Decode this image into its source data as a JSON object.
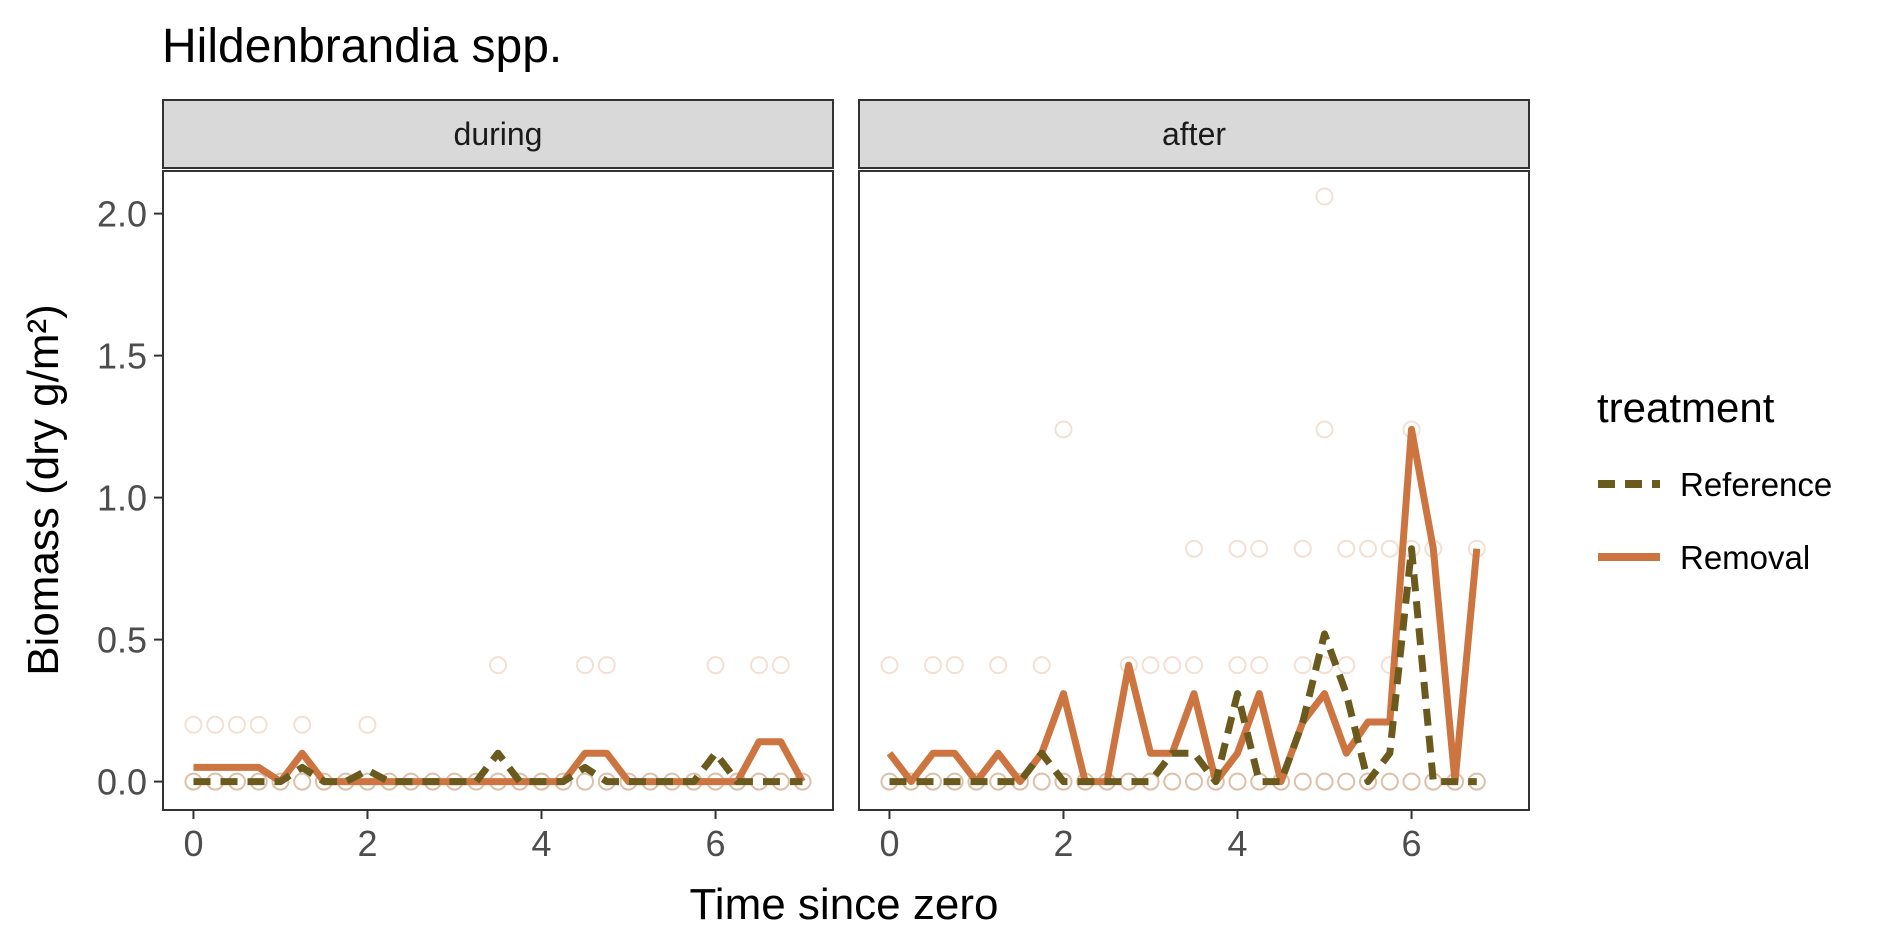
{
  "chart_data": {
    "type": "line",
    "title": "Hildenbrandia spp.",
    "xlabel": "Time since zero",
    "ylabel": "Biomass (dry g/m²)",
    "ylim": [
      -0.1,
      2.15
    ],
    "yticks": [
      0.0,
      0.5,
      1.0,
      1.5,
      2.0
    ],
    "ytick_labels": [
      "0.0",
      "0.5",
      "1.0",
      "1.5",
      "2.0"
    ],
    "legend": {
      "title": "treatment",
      "position": "right",
      "entries": [
        {
          "label": "Reference",
          "color": "#6b5a1e",
          "dash": "dashed"
        },
        {
          "label": "Removal",
          "color": "#cd7540",
          "dash": "solid"
        }
      ]
    },
    "colors": {
      "reference": "#6b5a1e",
      "removal": "#cd7540",
      "strip_fill": "#d9d9d9",
      "panel_border": "#333333"
    },
    "panels": [
      {
        "strip": "during",
        "xlim": [
          -0.35,
          7.35
        ],
        "xticks": [
          0,
          2,
          4,
          6
        ],
        "xtick_labels": [
          "0",
          "2",
          "4",
          "6"
        ],
        "series": [
          {
            "name": "Reference",
            "x": [
              0,
              0.25,
              0.5,
              0.75,
              1,
              1.25,
              1.5,
              1.75,
              2,
              2.25,
              2.5,
              2.75,
              3,
              3.25,
              3.5,
              3.75,
              4,
              4.25,
              4.5,
              4.75,
              5,
              5.25,
              5.5,
              5.75,
              6,
              6.25,
              6.5,
              6.75,
              7
            ],
            "y": [
              0,
              0,
              0,
              0,
              0,
              0.05,
              0,
              0,
              0.04,
              0,
              0,
              0,
              0,
              0,
              0.1,
              0,
              0,
              0,
              0.05,
              0,
              0,
              0,
              0,
              0,
              0.1,
              0,
              0,
              0,
              0
            ]
          },
          {
            "name": "Removal",
            "x": [
              0,
              0.25,
              0.5,
              0.75,
              1,
              1.25,
              1.5,
              1.75,
              2,
              2.25,
              2.5,
              2.75,
              3,
              3.25,
              3.5,
              3.75,
              4,
              4.25,
              4.5,
              4.75,
              5,
              5.25,
              5.5,
              5.75,
              6,
              6.25,
              6.5,
              6.75,
              7
            ],
            "y": [
              0.05,
              0.05,
              0.05,
              0.05,
              0,
              0.1,
              0,
              0,
              0,
              0,
              0,
              0,
              0,
              0,
              0,
              0,
              0,
              0,
              0.1,
              0.1,
              0,
              0,
              0,
              0,
              0,
              0,
              0.14,
              0.14,
              0
            ]
          }
        ],
        "points": [
          {
            "x": 0,
            "y": 0.2
          },
          {
            "x": 0.25,
            "y": 0.2
          },
          {
            "x": 0.5,
            "y": 0.2
          },
          {
            "x": 0.75,
            "y": 0.2
          },
          {
            "x": 1.25,
            "y": 0.2
          },
          {
            "x": 2,
            "y": 0.2
          },
          {
            "x": 3.5,
            "y": 0.41
          },
          {
            "x": 4.5,
            "y": 0.41
          },
          {
            "x": 4.75,
            "y": 0.41
          },
          {
            "x": 6,
            "y": 0.41
          },
          {
            "x": 6.5,
            "y": 0.41
          },
          {
            "x": 6.75,
            "y": 0.41
          },
          {
            "x": 0,
            "y": 0
          },
          {
            "x": 0.25,
            "y": 0
          },
          {
            "x": 0.5,
            "y": 0
          },
          {
            "x": 0.75,
            "y": 0
          },
          {
            "x": 1,
            "y": 0
          },
          {
            "x": 1.25,
            "y": 0
          },
          {
            "x": 1.5,
            "y": 0
          },
          {
            "x": 1.75,
            "y": 0
          },
          {
            "x": 2,
            "y": 0
          },
          {
            "x": 2.25,
            "y": 0
          },
          {
            "x": 2.5,
            "y": 0
          },
          {
            "x": 2.75,
            "y": 0
          },
          {
            "x": 3,
            "y": 0
          },
          {
            "x": 3.25,
            "y": 0
          },
          {
            "x": 3.5,
            "y": 0
          },
          {
            "x": 3.75,
            "y": 0
          },
          {
            "x": 4,
            "y": 0
          },
          {
            "x": 4.25,
            "y": 0
          },
          {
            "x": 4.5,
            "y": 0
          },
          {
            "x": 4.75,
            "y": 0
          },
          {
            "x": 5,
            "y": 0
          },
          {
            "x": 5.25,
            "y": 0
          },
          {
            "x": 5.5,
            "y": 0
          },
          {
            "x": 5.75,
            "y": 0
          },
          {
            "x": 6,
            "y": 0
          },
          {
            "x": 6.25,
            "y": 0
          },
          {
            "x": 6.5,
            "y": 0
          },
          {
            "x": 6.75,
            "y": 0
          },
          {
            "x": 7,
            "y": 0
          }
        ]
      },
      {
        "strip": "after",
        "xlim": [
          -0.35,
          7.35
        ],
        "xticks": [
          0,
          2,
          4,
          6
        ],
        "xtick_labels": [
          "0",
          "2",
          "4",
          "6"
        ],
        "series": [
          {
            "name": "Reference",
            "x": [
              0,
              0.25,
              0.5,
              0.75,
              1,
              1.25,
              1.5,
              1.75,
              2,
              2.25,
              2.5,
              2.75,
              3,
              3.25,
              3.5,
              3.75,
              4,
              4.25,
              4.5,
              4.75,
              5,
              5.25,
              5.5,
              5.75,
              6,
              6.25,
              6.5,
              6.75
            ],
            "y": [
              0,
              0,
              0,
              0,
              0,
              0,
              0,
              0.1,
              0,
              0,
              0,
              0,
              0,
              0.1,
              0.1,
              0,
              0.31,
              0,
              0,
              0.21,
              0.52,
              0.31,
              0,
              0.1,
              0.82,
              0,
              0,
              0
            ]
          },
          {
            "name": "Removal",
            "x": [
              0,
              0.25,
              0.5,
              0.75,
              1,
              1.25,
              1.5,
              1.75,
              2,
              2.25,
              2.5,
              2.75,
              3,
              3.25,
              3.5,
              3.75,
              4,
              4.25,
              4.5,
              4.75,
              5,
              5.25,
              5.5,
              5.75,
              6,
              6.25,
              6.5,
              6.75
            ],
            "y": [
              0.1,
              0,
              0.1,
              0.1,
              0,
              0.1,
              0,
              0.1,
              0.31,
              0,
              0,
              0.41,
              0.1,
              0.1,
              0.31,
              0,
              0.1,
              0.31,
              0,
              0.21,
              0.31,
              0.1,
              0.21,
              0.21,
              1.24,
              0.82,
              0,
              0.82
            ]
          }
        ],
        "points": [
          {
            "x": 0,
            "y": 0.41
          },
          {
            "x": 0.5,
            "y": 0.41
          },
          {
            "x": 0.75,
            "y": 0.41
          },
          {
            "x": 1.25,
            "y": 0.41
          },
          {
            "x": 1.75,
            "y": 0.41
          },
          {
            "x": 2,
            "y": 1.24
          },
          {
            "x": 2.75,
            "y": 0.41
          },
          {
            "x": 3,
            "y": 0.41
          },
          {
            "x": 3.25,
            "y": 0.41
          },
          {
            "x": 3.5,
            "y": 0.41
          },
          {
            "x": 3.5,
            "y": 0.82
          },
          {
            "x": 4,
            "y": 0.41
          },
          {
            "x": 4,
            "y": 0.82
          },
          {
            "x": 4.25,
            "y": 0.41
          },
          {
            "x": 4.25,
            "y": 0.82
          },
          {
            "x": 4.75,
            "y": 0.41
          },
          {
            "x": 4.75,
            "y": 0.82
          },
          {
            "x": 5,
            "y": 2.06
          },
          {
            "x": 5,
            "y": 1.24
          },
          {
            "x": 5,
            "y": 0.41
          },
          {
            "x": 5.25,
            "y": 0.41
          },
          {
            "x": 5.25,
            "y": 0.82
          },
          {
            "x": 5.5,
            "y": 0.82
          },
          {
            "x": 5.75,
            "y": 0.82
          },
          {
            "x": 5.75,
            "y": 0.41
          },
          {
            "x": 6,
            "y": 1.24
          },
          {
            "x": 6,
            "y": 0.82
          },
          {
            "x": 6.25,
            "y": 0.82
          },
          {
            "x": 6.75,
            "y": 0.82
          },
          {
            "x": 0,
            "y": 0
          },
          {
            "x": 0.25,
            "y": 0
          },
          {
            "x": 0.5,
            "y": 0
          },
          {
            "x": 0.75,
            "y": 0
          },
          {
            "x": 1,
            "y": 0
          },
          {
            "x": 1.25,
            "y": 0
          },
          {
            "x": 1.5,
            "y": 0
          },
          {
            "x": 1.75,
            "y": 0
          },
          {
            "x": 2,
            "y": 0
          },
          {
            "x": 2.25,
            "y": 0
          },
          {
            "x": 2.5,
            "y": 0
          },
          {
            "x": 2.75,
            "y": 0
          },
          {
            "x": 3,
            "y": 0
          },
          {
            "x": 3.25,
            "y": 0
          },
          {
            "x": 3.5,
            "y": 0
          },
          {
            "x": 3.75,
            "y": 0
          },
          {
            "x": 4,
            "y": 0
          },
          {
            "x": 4.25,
            "y": 0
          },
          {
            "x": 4.5,
            "y": 0
          },
          {
            "x": 4.75,
            "y": 0
          },
          {
            "x": 5,
            "y": 0
          },
          {
            "x": 5.25,
            "y": 0
          },
          {
            "x": 5.5,
            "y": 0
          },
          {
            "x": 5.75,
            "y": 0
          },
          {
            "x": 6,
            "y": 0
          },
          {
            "x": 6.25,
            "y": 0
          },
          {
            "x": 6.5,
            "y": 0
          },
          {
            "x": 6.75,
            "y": 0
          }
        ]
      }
    ]
  }
}
